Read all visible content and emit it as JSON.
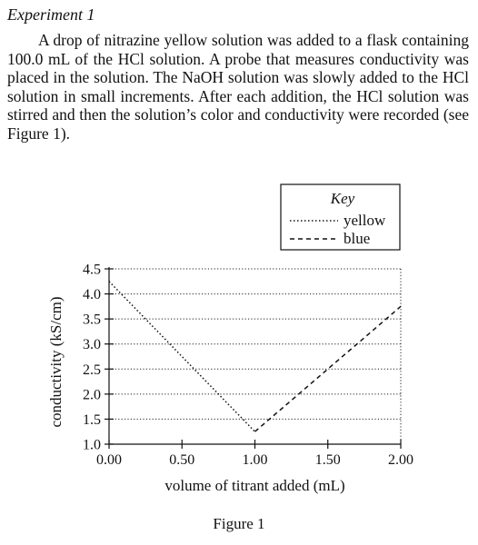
{
  "experiment_heading": "Experiment 1",
  "paragraph": "A drop of nitrazine yellow solution was added to a flask containing 100.0 mL of the HCl solution. A probe that measures conductivity was placed in the solution. The NaOH solution was slowly added to the HCl solution in small increments. After each addition, the HCl solution was stirred and then the solution’s color and conductivity were recorded (see Figure 1).",
  "figure_caption": "Figure 1",
  "chart_data": {
    "type": "line",
    "title": "",
    "xlabel": "volume of titrant added (mL)",
    "ylabel": "conductivity (kS/cm)",
    "xlim": [
      0,
      2
    ],
    "ylim": [
      1,
      4.5
    ],
    "x_ticks": [
      0,
      0.5,
      1,
      1.5,
      2
    ],
    "x_tick_labels": [
      "0.00",
      "0.50",
      "1.00",
      "1.50",
      "2.00"
    ],
    "y_ticks": [
      1.0,
      1.5,
      2.0,
      2.5,
      3.0,
      3.5,
      4.0,
      4.5
    ],
    "y_tick_labels": [
      "1.0",
      "1.5",
      "2.0",
      "2.5",
      "3.0",
      "3.5",
      "4.0",
      "4.5"
    ],
    "grid": "horizontal dotted",
    "legend": {
      "title": "Key",
      "placement": "top-right",
      "entries": [
        "yellow",
        "blue"
      ]
    },
    "series": [
      {
        "name": "yellow",
        "style": "dotted",
        "x": [
          0,
          1
        ],
        "y": [
          4.25,
          1.25
        ]
      },
      {
        "name": "blue",
        "style": "dashed",
        "x": [
          1,
          2
        ],
        "y": [
          1.25,
          3.75
        ]
      }
    ]
  }
}
